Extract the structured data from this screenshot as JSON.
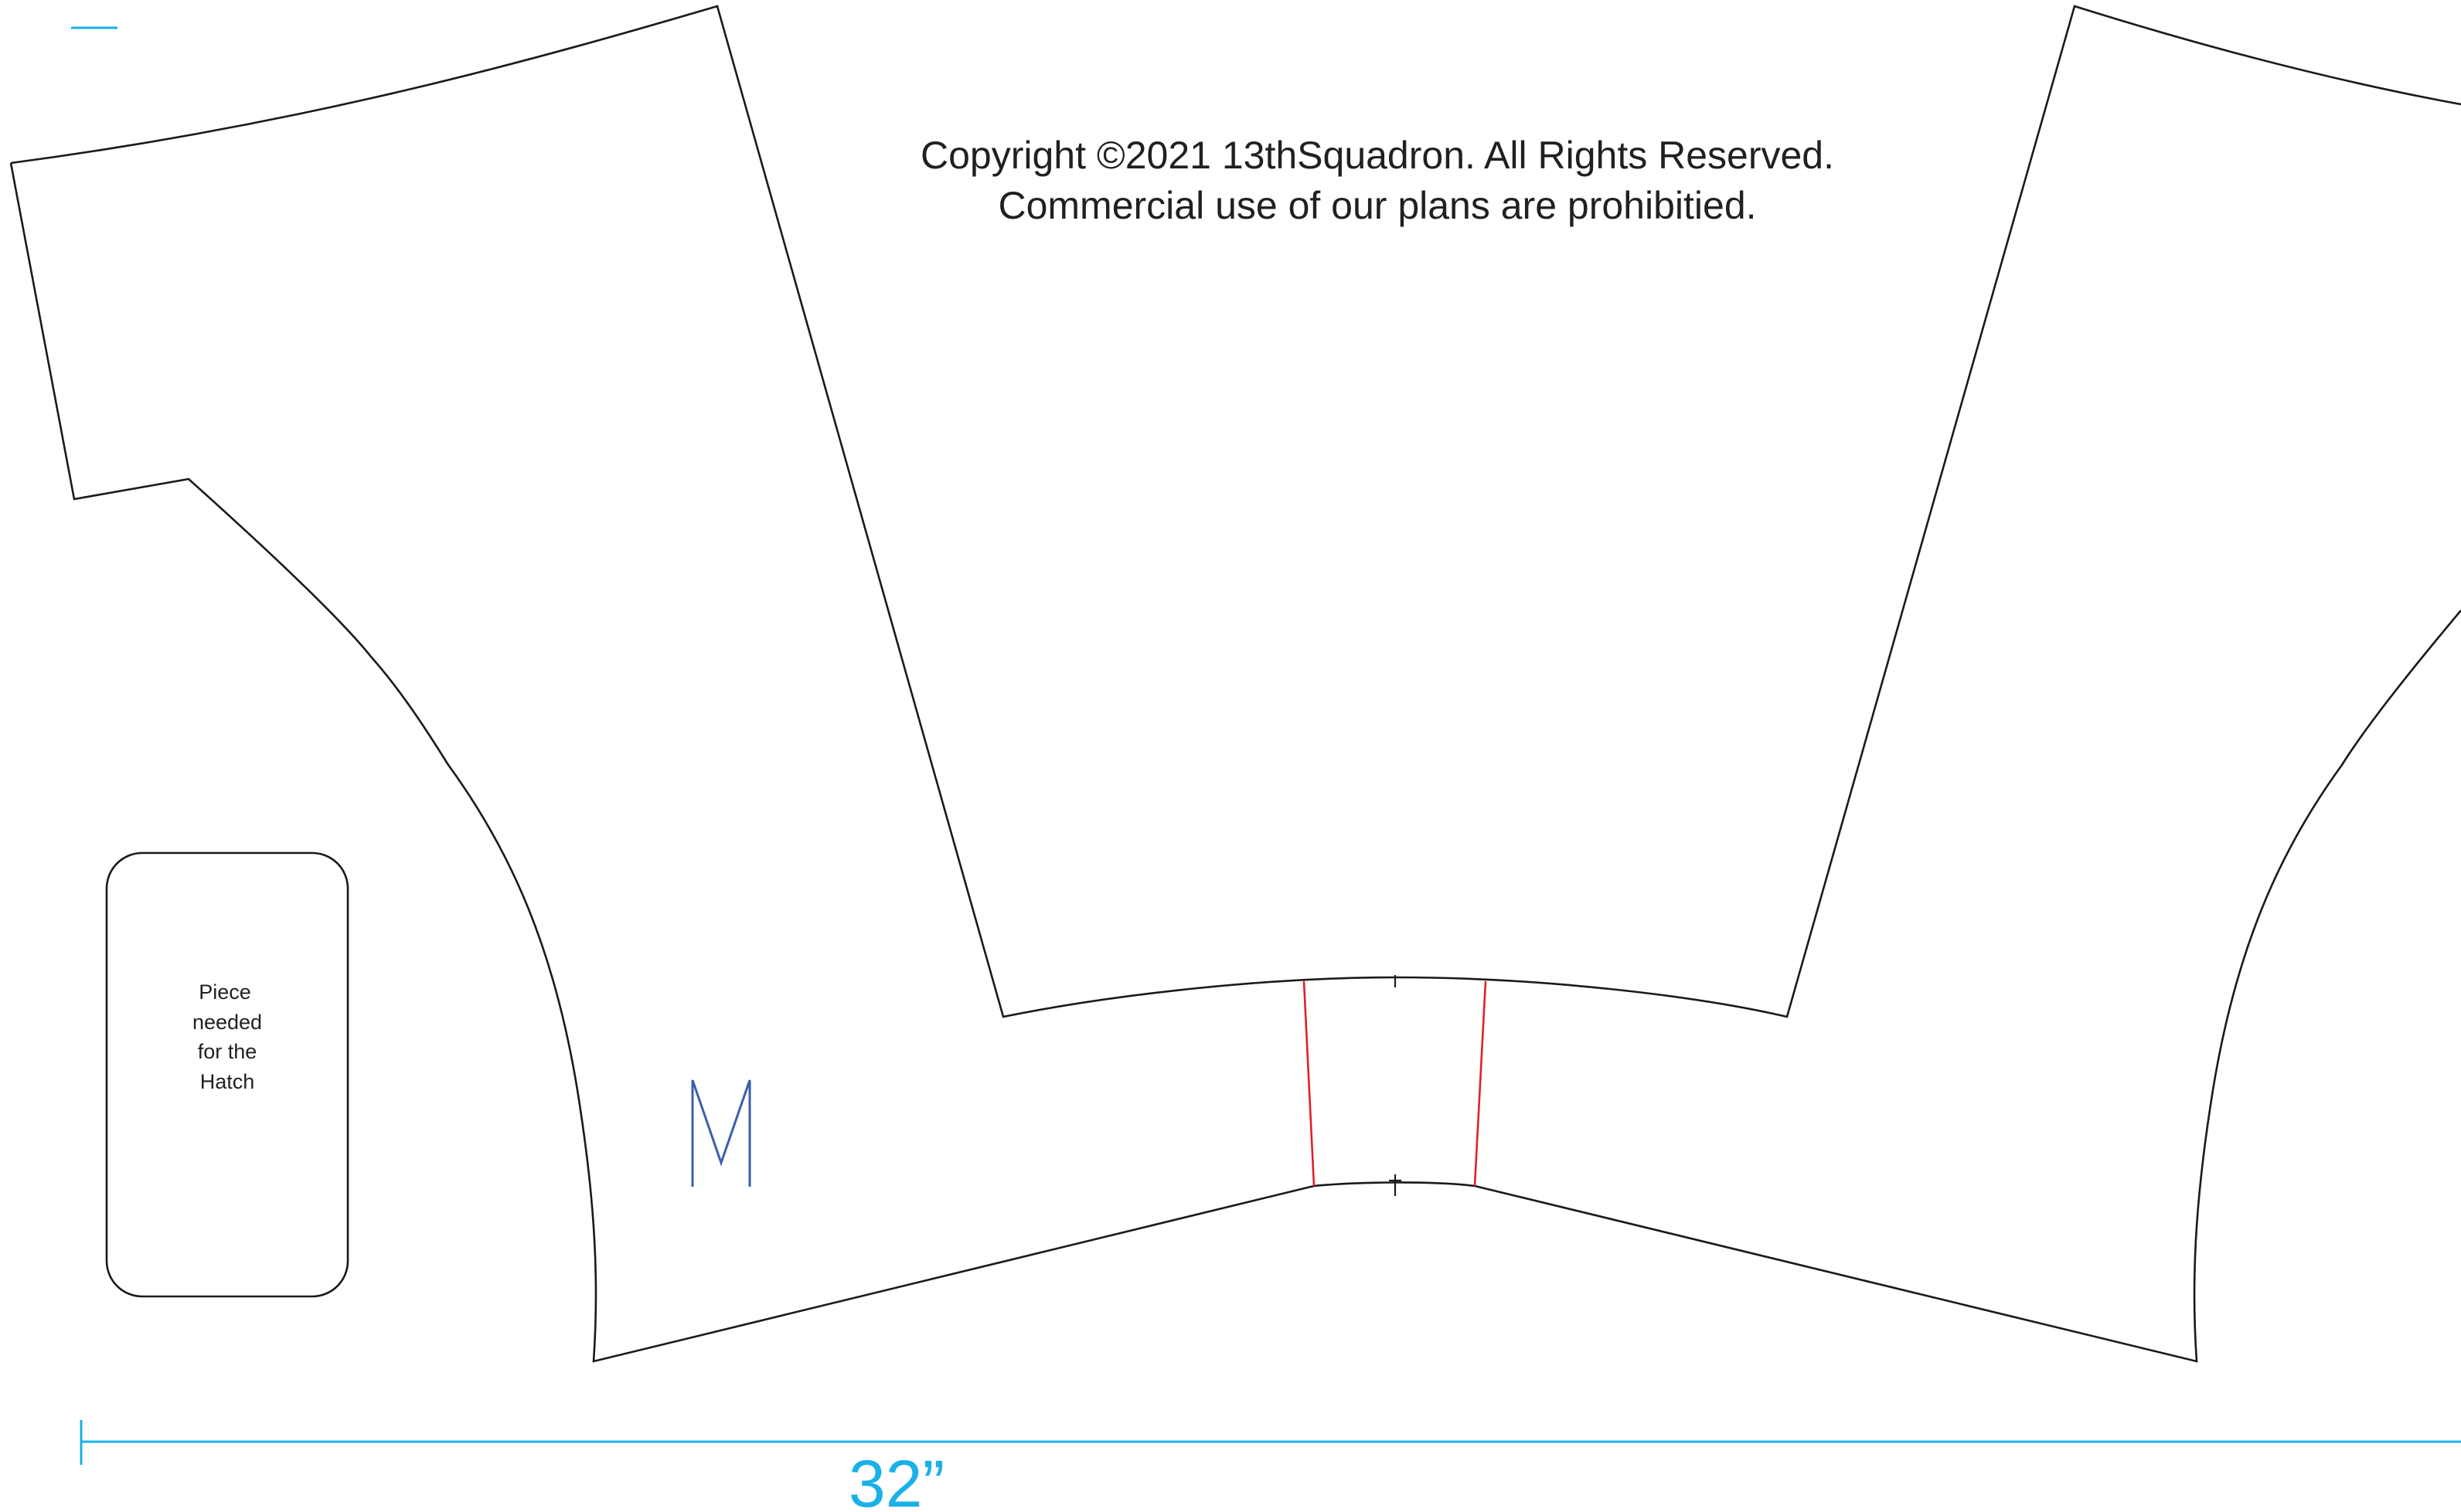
{
  "copyright": {
    "line1": "Copyright ©2021  13thSquadron. All Rights Reserved.",
    "line2": "Commercial use of our plans are prohibitied."
  },
  "hatch_piece": {
    "lines": [
      "Piece",
      "needed",
      "for the",
      "Hatch"
    ]
  },
  "dimension": {
    "label": "32”"
  },
  "mirror_marker": {
    "symbol": "M"
  },
  "colors": {
    "outline": "#1a1a1a",
    "seam": "#e0202a",
    "dimension": "#1ab0e8",
    "marker": "#3a5fb0",
    "text": "#231f20",
    "background": "#ffffff"
  }
}
